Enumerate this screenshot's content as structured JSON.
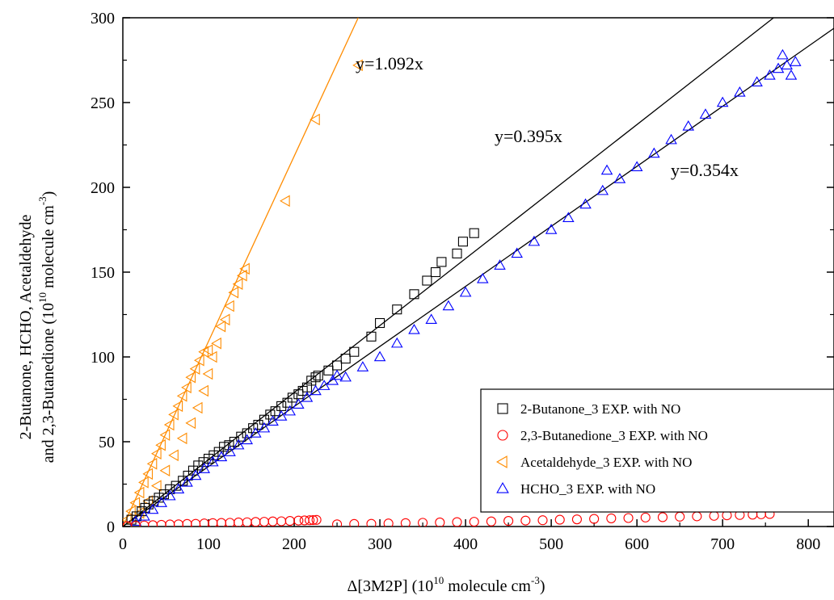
{
  "chart_data": {
    "type": "scatter",
    "xlabel": {
      "main": "Δ[3M2P] (10",
      "sup": "10",
      "unit": " molecule cm",
      "unit_sup": "-3",
      "close": ")"
    },
    "ylabel": {
      "line1": "2-Butanone, HCHO, Acetaldehyde",
      "line2_main": "and 2,3-Butanedione (10",
      "line2_sup": "10",
      "line2_unit": " molecule cm",
      "line2_unit_sup": "-3",
      "line2_close": ")"
    },
    "xlim": [
      0,
      830
    ],
    "ylim": [
      0,
      300
    ],
    "xticks": [
      0,
      100,
      200,
      300,
      400,
      500,
      600,
      700,
      800
    ],
    "yticks": [
      0,
      50,
      100,
      150,
      200,
      250,
      300
    ],
    "fit_lines": [
      {
        "label": "y=1.092x",
        "slope": 1.092,
        "color": "#ff8c00"
      },
      {
        "label": "y=0.395x",
        "slope": 0.395,
        "color": "#000000"
      },
      {
        "label": "y=0.354x",
        "slope": 0.354,
        "color": "#000000"
      }
    ],
    "series": [
      {
        "name": "2-Butanone_3 EXP. with NO",
        "marker": "square",
        "color": "#000000",
        "points": [
          [
            10,
            4
          ],
          [
            16,
            6
          ],
          [
            22,
            9
          ],
          [
            26,
            11
          ],
          [
            30,
            13
          ],
          [
            36,
            15
          ],
          [
            42,
            17
          ],
          [
            48,
            19
          ],
          [
            55,
            22
          ],
          [
            62,
            24
          ],
          [
            70,
            27
          ],
          [
            76,
            30
          ],
          [
            82,
            33
          ],
          [
            88,
            36
          ],
          [
            94,
            38
          ],
          [
            100,
            40
          ],
          [
            106,
            42
          ],
          [
            112,
            44
          ],
          [
            118,
            47
          ],
          [
            124,
            48
          ],
          [
            130,
            50
          ],
          [
            138,
            53
          ],
          [
            145,
            55
          ],
          [
            152,
            58
          ],
          [
            158,
            60
          ],
          [
            165,
            63
          ],
          [
            172,
            66
          ],
          [
            178,
            68
          ],
          [
            185,
            71
          ],
          [
            192,
            73
          ],
          [
            198,
            76
          ],
          [
            205,
            78
          ],
          [
            210,
            80
          ],
          [
            215,
            82
          ],
          [
            220,
            86
          ],
          [
            225,
            88
          ],
          [
            228,
            89
          ],
          [
            240,
            92
          ],
          [
            250,
            95
          ],
          [
            260,
            99
          ],
          [
            270,
            103
          ],
          [
            290,
            112
          ],
          [
            300,
            120
          ],
          [
            320,
            128
          ],
          [
            340,
            137
          ],
          [
            355,
            145
          ],
          [
            365,
            150
          ],
          [
            372,
            156
          ],
          [
            390,
            161
          ],
          [
            397,
            168
          ],
          [
            410,
            173
          ]
        ]
      },
      {
        "name": "2,3-Butanedione_3 EXP. with NO",
        "marker": "circle",
        "color": "#ff0000",
        "points": [
          [
            5,
            0.2
          ],
          [
            15,
            0.4
          ],
          [
            25,
            0.6
          ],
          [
            35,
            0.8
          ],
          [
            45,
            1.0
          ],
          [
            55,
            1.2
          ],
          [
            65,
            1.3
          ],
          [
            75,
            1.5
          ],
          [
            85,
            1.6
          ],
          [
            95,
            1.8
          ],
          [
            105,
            2.0
          ],
          [
            115,
            2.1
          ],
          [
            125,
            2.2
          ],
          [
            135,
            2.4
          ],
          [
            145,
            2.5
          ],
          [
            155,
            2.7
          ],
          [
            165,
            2.8
          ],
          [
            175,
            3.0
          ],
          [
            185,
            3.1
          ],
          [
            195,
            3.3
          ],
          [
            205,
            3.5
          ],
          [
            212,
            3.6
          ],
          [
            218,
            3.7
          ],
          [
            222,
            3.8
          ],
          [
            226,
            3.9
          ],
          [
            250,
            1.3
          ],
          [
            270,
            1.5
          ],
          [
            290,
            1.6
          ],
          [
            310,
            1.8
          ],
          [
            330,
            2.0
          ],
          [
            350,
            2.2
          ],
          [
            370,
            2.4
          ],
          [
            390,
            2.6
          ],
          [
            410,
            2.8
          ],
          [
            430,
            3.0
          ],
          [
            450,
            3.3
          ],
          [
            470,
            3.5
          ],
          [
            490,
            3.7
          ],
          [
            510,
            4.0
          ],
          [
            530,
            4.2
          ],
          [
            550,
            4.5
          ],
          [
            570,
            4.8
          ],
          [
            590,
            5.0
          ],
          [
            610,
            5.3
          ],
          [
            630,
            5.5
          ],
          [
            650,
            5.8
          ],
          [
            670,
            6.0
          ],
          [
            690,
            6.3
          ],
          [
            705,
            6.6
          ],
          [
            720,
            6.8
          ],
          [
            735,
            7.0
          ],
          [
            745,
            7.2
          ],
          [
            755,
            7.4
          ]
        ]
      },
      {
        "name": "Acetaldehyde_3 EXP. with NO",
        "marker": "triangle-left",
        "color": "#ff8c00",
        "points": [
          [
            5,
            4
          ],
          [
            10,
            9
          ],
          [
            15,
            14
          ],
          [
            20,
            20
          ],
          [
            25,
            26
          ],
          [
            30,
            31
          ],
          [
            35,
            37
          ],
          [
            40,
            43
          ],
          [
            45,
            48
          ],
          [
            50,
            54
          ],
          [
            55,
            60
          ],
          [
            60,
            66
          ],
          [
            65,
            71
          ],
          [
            70,
            77
          ],
          [
            75,
            82
          ],
          [
            80,
            88
          ],
          [
            85,
            93
          ],
          [
            90,
            98
          ],
          [
            95,
            103
          ],
          [
            100,
            104
          ],
          [
            20,
            8
          ],
          [
            30,
            15
          ],
          [
            40,
            24
          ],
          [
            50,
            33
          ],
          [
            60,
            42
          ],
          [
            70,
            52
          ],
          [
            80,
            61
          ],
          [
            88,
            70
          ],
          [
            95,
            80
          ],
          [
            100,
            90
          ],
          [
            105,
            100
          ],
          [
            110,
            108
          ],
          [
            115,
            118
          ],
          [
            120,
            122
          ],
          [
            125,
            130
          ],
          [
            130,
            138
          ],
          [
            135,
            143
          ],
          [
            140,
            148
          ],
          [
            143,
            152
          ],
          [
            190,
            192
          ],
          [
            225,
            240
          ],
          [
            275,
            272
          ]
        ]
      },
      {
        "name": "HCHO_3 EXP. with NO",
        "marker": "triangle-up",
        "color": "#0000ff",
        "points": [
          [
            15,
            3
          ],
          [
            25,
            6
          ],
          [
            35,
            10
          ],
          [
            45,
            14
          ],
          [
            55,
            18
          ],
          [
            65,
            22
          ],
          [
            75,
            26
          ],
          [
            85,
            30
          ],
          [
            95,
            34
          ],
          [
            105,
            38
          ],
          [
            115,
            41
          ],
          [
            125,
            44
          ],
          [
            135,
            48
          ],
          [
            145,
            51
          ],
          [
            155,
            55
          ],
          [
            165,
            58
          ],
          [
            175,
            62
          ],
          [
            185,
            65
          ],
          [
            195,
            68
          ],
          [
            205,
            72
          ],
          [
            215,
            76
          ],
          [
            225,
            80
          ],
          [
            235,
            83
          ],
          [
            245,
            86
          ],
          [
            250,
            89
          ],
          [
            260,
            88
          ],
          [
            280,
            94
          ],
          [
            300,
            100
          ],
          [
            320,
            108
          ],
          [
            340,
            116
          ],
          [
            360,
            122
          ],
          [
            380,
            130
          ],
          [
            400,
            138
          ],
          [
            420,
            146
          ],
          [
            440,
            154
          ],
          [
            460,
            161
          ],
          [
            480,
            168
          ],
          [
            500,
            175
          ],
          [
            520,
            182
          ],
          [
            540,
            190
          ],
          [
            560,
            198
          ],
          [
            565,
            210
          ],
          [
            580,
            205
          ],
          [
            600,
            212
          ],
          [
            620,
            220
          ],
          [
            640,
            228
          ],
          [
            660,
            236
          ],
          [
            680,
            243
          ],
          [
            700,
            250
          ],
          [
            720,
            256
          ],
          [
            740,
            262
          ],
          [
            755,
            266
          ],
          [
            765,
            270
          ],
          [
            770,
            278
          ],
          [
            775,
            272
          ],
          [
            780,
            266
          ],
          [
            785,
            274
          ]
        ]
      }
    ]
  }
}
